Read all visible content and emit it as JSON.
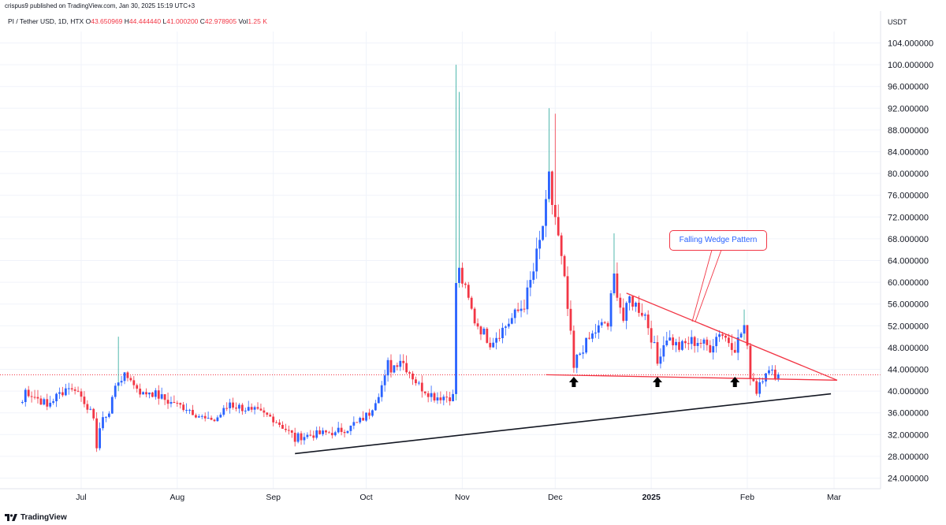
{
  "header": {
    "published": "crispus9 published on TradingView.com, Jan 30, 2025 15:19 UTC+3"
  },
  "legend": {
    "symbol": "PI / Tether USD, 1D, HTX",
    "open_label": "O",
    "open": "43.650969",
    "high_label": "H",
    "high": "44.444440",
    "low_label": "L",
    "low": "41.000200",
    "close_label": "C",
    "close": "42.978905",
    "vol_label": "Vol",
    "vol": "1.25 K"
  },
  "footer": {
    "brand": "TradingView"
  },
  "annotation": {
    "text": "Falling Wedge Pattern"
  },
  "colors": {
    "up": "#2962ff",
    "down": "#f23645",
    "up_wick": "#26a69a",
    "grid": "#f0f3fa",
    "trend": "#131722",
    "pattern": "#f23645"
  },
  "chart_data": {
    "type": "candlestick",
    "currency": "USDT",
    "y_axis_ticks": [
      "104.000000",
      "100.000000",
      "96.000000",
      "92.000000",
      "88.000000",
      "84.000000",
      "80.000000",
      "76.000000",
      "72.000000",
      "68.000000",
      "64.000000",
      "60.000000",
      "56.000000",
      "52.000000",
      "48.000000",
      "44.000000",
      "40.000000",
      "36.000000",
      "32.000000",
      "28.000000",
      "24.000000"
    ],
    "ylim": [
      21,
      106
    ],
    "x_axis_ticks": [
      "Jul",
      "Aug",
      "Sep",
      "Oct",
      "Nov",
      "Dec",
      "2025",
      "Feb",
      "Mar"
    ],
    "last_price": 42.98,
    "keypoints": [
      [
        "2024-06-12",
        40.5,
        38
      ],
      [
        "2024-06-20",
        37.5,
        37
      ],
      [
        "2024-06-28",
        41.5,
        40
      ],
      [
        "2024-07-04",
        36.5,
        36
      ],
      [
        "2024-07-06",
        32.0,
        30
      ],
      [
        "2024-07-10",
        37.0,
        36
      ],
      [
        "2024-07-13",
        42.5,
        42
      ],
      [
        "2024-07-18",
        42.5,
        41
      ],
      [
        "2024-07-20",
        39.0,
        40
      ],
      [
        "2024-07-23",
        40.0,
        40
      ],
      [
        "2024-07-31",
        37.5,
        38
      ],
      [
        "2024-08-04",
        37.0,
        37
      ],
      [
        "2024-08-12",
        34.0,
        35
      ],
      [
        "2024-08-18",
        37.5,
        38
      ],
      [
        "2024-08-25",
        36.5,
        36
      ],
      [
        "2024-09-01",
        35.0,
        35
      ],
      [
        "2024-09-08",
        31.5,
        31
      ],
      [
        "2024-09-14",
        32.0,
        32
      ],
      [
        "2024-09-21",
        32.5,
        32
      ],
      [
        "2024-09-27",
        33.5,
        34
      ],
      [
        "2024-10-02",
        36.0,
        36
      ],
      [
        "2024-10-08",
        43.5,
        45
      ],
      [
        "2024-10-12",
        46.0,
        46
      ],
      [
        "2024-10-18",
        41.0,
        41
      ],
      [
        "2024-10-23",
        39.0,
        39
      ],
      [
        "2024-10-29",
        39.0,
        39
      ],
      [
        "2024-10-30",
        60.0,
        60
      ],
      [
        "2024-10-31",
        62.0,
        62
      ],
      [
        "2024-11-05",
        53.0,
        53
      ],
      [
        "2024-11-10",
        49.0,
        49
      ],
      [
        "2024-11-15",
        52.0,
        52
      ],
      [
        "2024-11-21",
        56.0,
        56
      ],
      [
        "2024-11-25",
        64.0,
        65
      ],
      [
        "2024-11-29",
        77.0,
        79
      ],
      [
        "2024-12-01",
        72.0,
        72
      ],
      [
        "2024-12-04",
        60.0,
        60
      ],
      [
        "2024-12-07",
        45.0,
        44
      ],
      [
        "2024-12-10",
        48.0,
        48
      ],
      [
        "2024-12-14",
        51.0,
        51
      ],
      [
        "2024-12-18",
        53.0,
        52
      ],
      [
        "2024-12-20",
        61.0,
        61
      ],
      [
        "2024-12-23",
        53.0,
        53
      ],
      [
        "2024-12-25",
        57.0,
        57
      ],
      [
        "2024-12-30",
        54.0,
        54
      ],
      [
        "2025-01-03",
        46.0,
        45
      ],
      [
        "2025-01-06",
        50.0,
        50
      ],
      [
        "2025-01-10",
        48.0,
        48
      ],
      [
        "2025-01-15",
        49.5,
        49
      ],
      [
        "2025-01-20",
        48.0,
        48
      ],
      [
        "2025-01-23",
        51.0,
        51
      ],
      [
        "2025-01-28",
        48.0,
        48
      ],
      [
        "2025-01-31",
        52.0,
        52
      ],
      [
        "2025-02-02",
        43.0,
        43
      ],
      [
        "2025-02-04",
        41.0,
        40
      ],
      [
        "2025-02-07",
        43.5,
        44
      ],
      [
        "2025-02-11",
        43.0,
        43
      ]
    ],
    "spikes": [
      [
        "2024-07-13",
        50
      ],
      [
        "2024-10-30",
        100
      ],
      [
        "2024-10-31",
        95
      ],
      [
        "2024-11-29",
        92
      ],
      [
        "2024-12-01",
        91
      ],
      [
        "2024-12-20",
        69
      ],
      [
        "2025-01-31",
        55
      ]
    ],
    "trendlines": [
      {
        "name": "support",
        "from": [
          "2024-09-08",
          28.5
        ],
        "to": [
          "2025-02-28",
          39.5
        ],
        "color": "trend"
      },
      {
        "name": "wedge-upper",
        "from": [
          "2024-12-24",
          58.0
        ],
        "to": [
          "2025-03-02",
          42.0
        ],
        "color": "pattern"
      },
      {
        "name": "wedge-lower",
        "from": [
          "2024-11-28",
          43.0
        ],
        "to": [
          "2025-03-02",
          42.0
        ],
        "color": "pattern"
      }
    ],
    "arrows": [
      "2024-12-07",
      "2025-01-03",
      "2025-01-28"
    ]
  }
}
